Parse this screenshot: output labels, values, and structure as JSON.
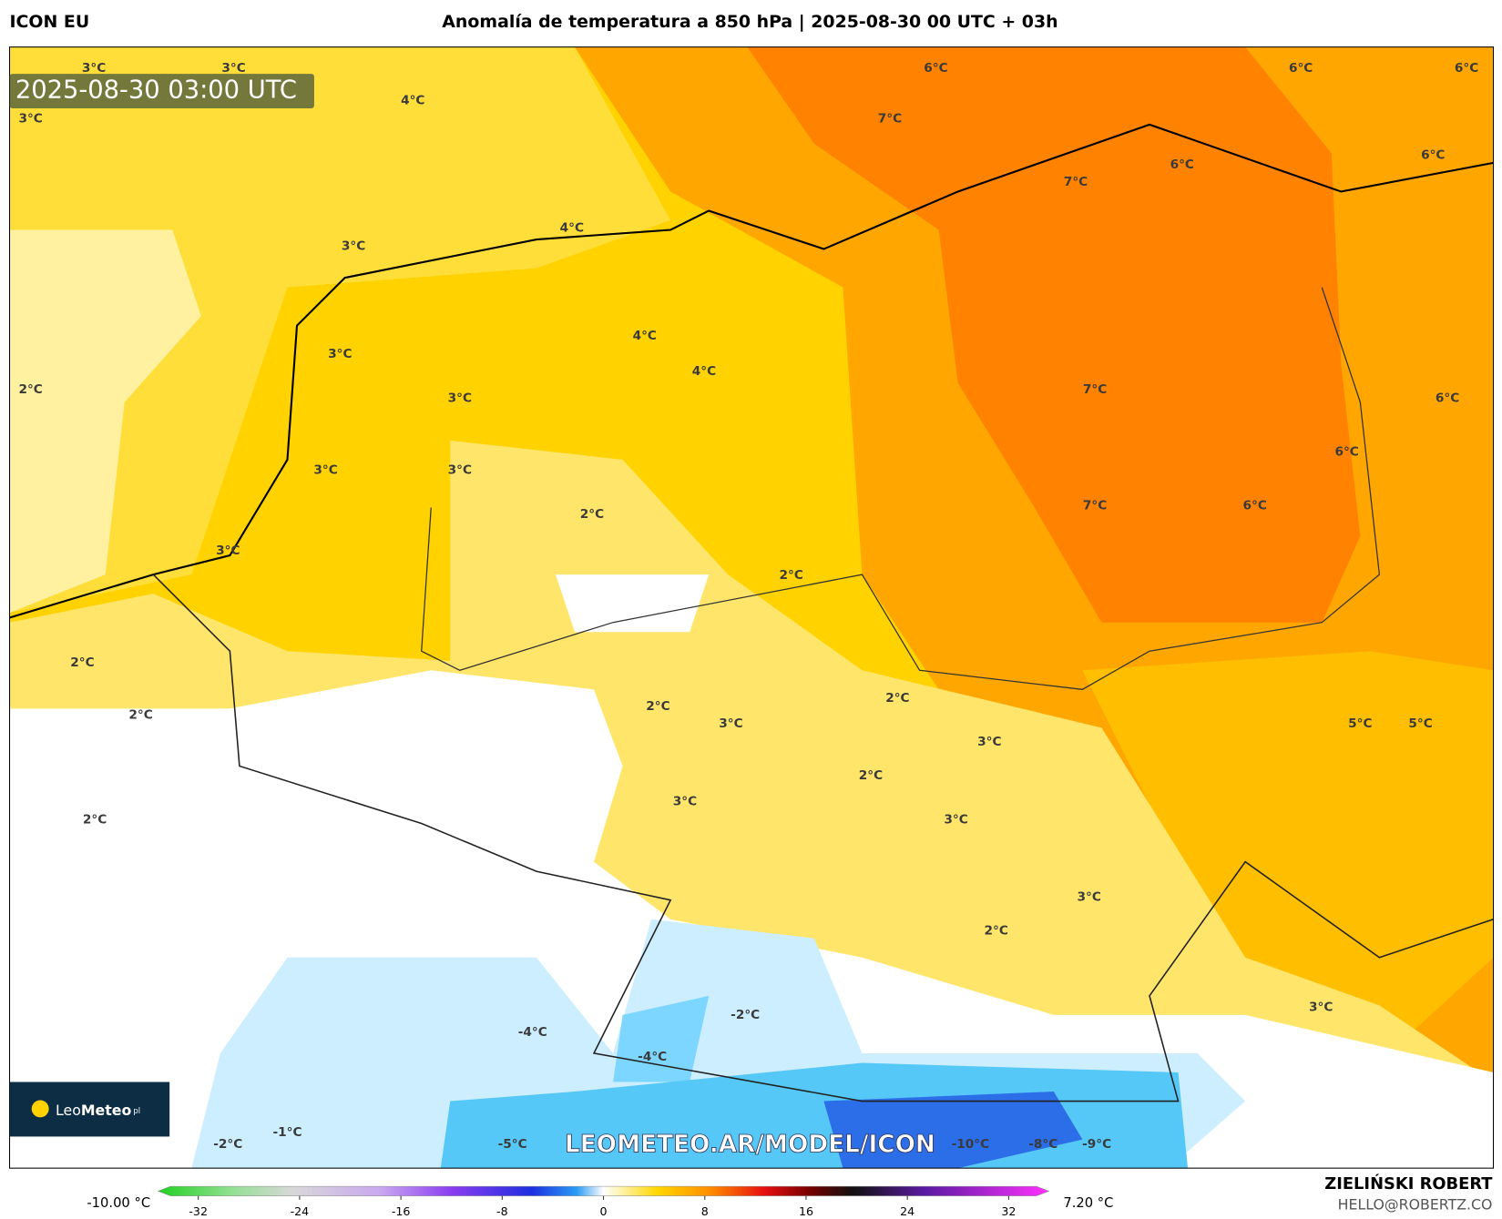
{
  "header": {
    "model": "ICON EU",
    "title": "Anomalía de temperatura a 850 hPa | 2025-08-30 00 UTC + 03h"
  },
  "timestamp": "2025-08-30 03:00 UTC",
  "map_labels": [
    "3°C",
    "3°C",
    "3°C",
    "4°C",
    "6°C",
    "6°C",
    "6°C",
    "7°C",
    "6°C",
    "6°C",
    "7°C",
    "4°C",
    "3°C",
    "4°C",
    "4°C",
    "3°C",
    "2°C",
    "3°C",
    "7°C",
    "6°C",
    "6°C",
    "3°C",
    "3°C",
    "2°C",
    "7°C",
    "6°C",
    "3°C",
    "2°C",
    "2°C",
    "2°C",
    "2°C",
    "2°C",
    "3°C",
    "5°C",
    "5°C",
    "3°C",
    "2°C",
    "3°C",
    "2°C",
    "3°C",
    "3°C",
    "2°C",
    "3°C",
    "-2°C",
    "-4°C",
    "-4°C",
    "-1°C",
    "-2°C",
    "-5°C",
    "-10°C",
    "-8°C",
    "-9°C"
  ],
  "logo": {
    "brand_light": "Leo",
    "brand_bold": "Meteo",
    "suffix": "pl"
  },
  "watermark": "LEOMETEO.AR/MODEL/ICON",
  "colorbar": {
    "min_label": "-10.00 °C",
    "max_label": "7.20 °C",
    "ticks": [
      -32,
      -24,
      -16,
      -8,
      0,
      8,
      16,
      24,
      32
    ]
  },
  "author": {
    "name": "ZIELIŃSKI ROBERT",
    "email": "HELLO@ROBERTZ.CO"
  }
}
